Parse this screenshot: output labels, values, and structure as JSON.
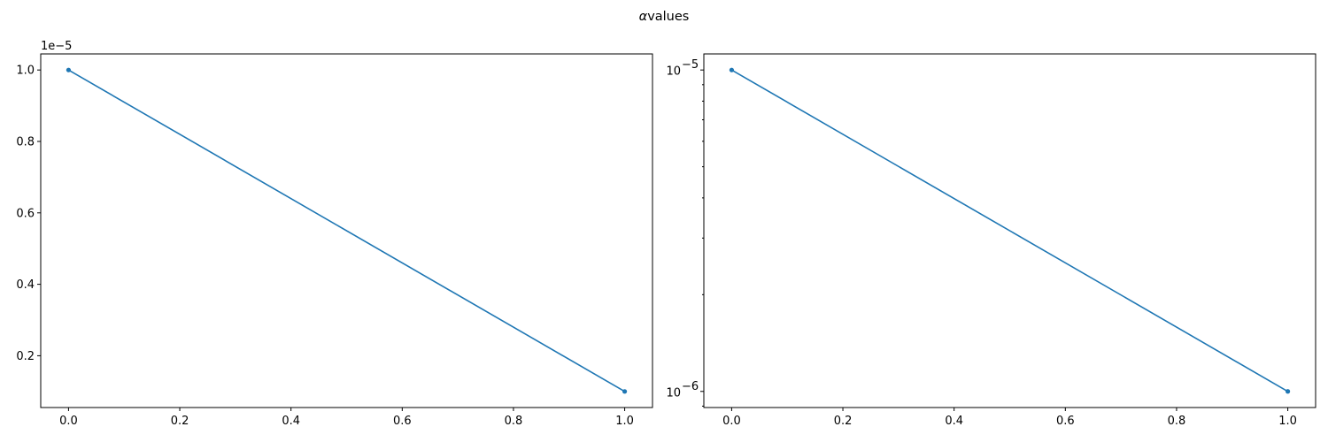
{
  "figure": {
    "title_prefix": "α",
    "title_text": "values",
    "series_color": "#1f77b4"
  },
  "chart_data": [
    {
      "type": "line",
      "title": "",
      "xlabel": "",
      "ylabel": "",
      "x": [
        0,
        1
      ],
      "series": [
        {
          "values": [
            1e-05,
            1e-06
          ]
        }
      ],
      "xlim": [
        -0.05,
        1.05
      ],
      "ylim": [
        5.5e-07,
        1.045e-05
      ],
      "y_scale": "linear",
      "y_offset_text": "1e−5",
      "xticks": [
        0.0,
        0.2,
        0.4,
        0.6,
        0.8,
        1.0
      ],
      "xtick_labels": [
        "0.0",
        "0.2",
        "0.4",
        "0.6",
        "0.8",
        "1.0"
      ],
      "yticks": [
        2e-06,
        4e-06,
        6e-06,
        8e-06,
        1e-05
      ],
      "ytick_labels": [
        "0.2",
        "0.4",
        "0.6",
        "0.8",
        "1.0"
      ],
      "marker": "circle",
      "grid": false
    },
    {
      "type": "line",
      "title": "",
      "xlabel": "",
      "ylabel": "",
      "x": [
        0,
        1
      ],
      "series": [
        {
          "values": [
            1e-05,
            1e-06
          ]
        }
      ],
      "xlim": [
        -0.05,
        1.05
      ],
      "ylim": [
        8.91e-07,
        1.122e-05
      ],
      "y_scale": "log",
      "xticks": [
        0.0,
        0.2,
        0.4,
        0.6,
        0.8,
        1.0
      ],
      "xtick_labels": [
        "0.0",
        "0.2",
        "0.4",
        "0.6",
        "0.8",
        "1.0"
      ],
      "yticks": [
        1e-06,
        1e-05
      ],
      "ytick_labels": [
        {
          "base": "10",
          "exp": "−6"
        },
        {
          "base": "10",
          "exp": "−5"
        }
      ],
      "marker": "circle",
      "grid": false
    }
  ]
}
